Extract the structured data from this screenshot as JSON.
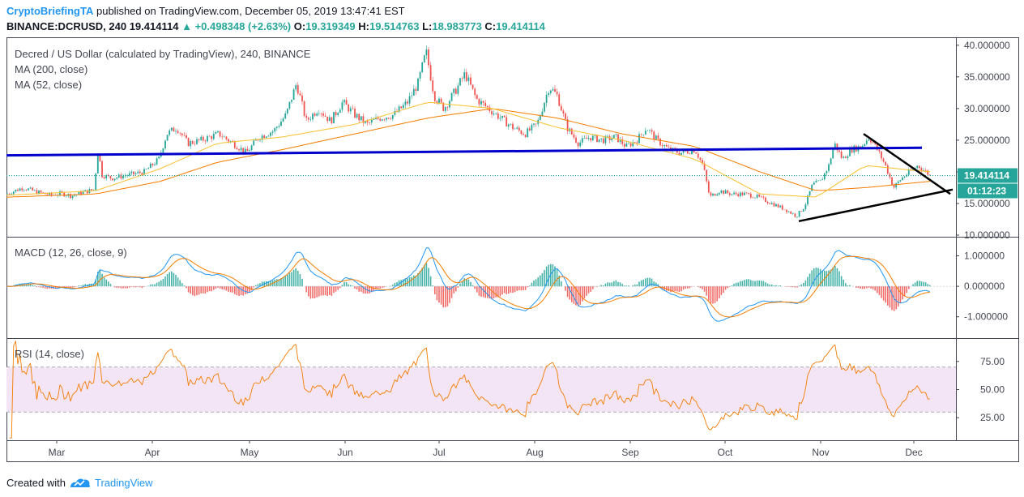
{
  "header": {
    "author": "CryptoBriefingTA",
    "published_text": " published on TradingView.com, December 05, 2019 13:47:41 EST"
  },
  "quote": {
    "symbol": "BINANCE:DCRUSD, 240",
    "last": "19.414114",
    "change": "+0.498348 (+2.63%)",
    "open_label": "O:",
    "open": "19.319349",
    "high_label": "H:",
    "high": "19.514763",
    "low_label": "L:",
    "low": "18.983773",
    "close_label": "C:",
    "close": "19.414114"
  },
  "legend": {
    "title": "Decred / US Dollar (calculated by TradingView), 240, BINANCE",
    "ma200": "MA (200, close)",
    "ma52": "MA (52, close)",
    "macd": "MACD (12, 26, close, 9)",
    "rsi": "RSI (14, close)"
  },
  "price_tag": {
    "value": "19.414114",
    "countdown": "01:12:23"
  },
  "colors": {
    "up": "#26a69a",
    "down": "#ef5350",
    "trendline": "#0000cc",
    "triangle": "#000000",
    "ma200": "#f57c00",
    "ma52": "#fbc02d",
    "macd_line": "#2196f3",
    "signal_line": "#f57c00",
    "rsi_line": "#f57c00",
    "rsi_band": "#f3e5f5"
  },
  "footer": {
    "created_with": "Created with",
    "brand": "TradingView"
  },
  "chart_data": [
    {
      "type": "candlestick",
      "title": "Decred / US Dollar (calculated by TradingView), 240, BINANCE",
      "x_ticks": [
        "Mar",
        "Apr",
        "May",
        "Jun",
        "Jul",
        "Aug",
        "Sep",
        "Oct",
        "Nov",
        "Dec"
      ],
      "y_ticks": [
        "40.000000",
        "35.000000",
        "30.000000",
        "25.000000",
        "20.000000",
        "15.000000",
        "10.000000"
      ],
      "y_tick_values": [
        40,
        35,
        30,
        25,
        20,
        15,
        10
      ],
      "ylim": [
        10,
        41
      ],
      "price_path": [
        [
          0,
          16.5
        ],
        [
          20,
          17.5
        ],
        [
          38,
          16.8
        ],
        [
          55,
          16.3
        ],
        [
          68,
          16.6
        ],
        [
          80,
          16.2
        ],
        [
          95,
          16.8
        ],
        [
          108,
          17.2
        ],
        [
          113,
          23.5
        ],
        [
          118,
          19.5
        ],
        [
          130,
          19.0
        ],
        [
          150,
          19.5
        ],
        [
          170,
          20.0
        ],
        [
          188,
          22.0
        ],
        [
          198,
          26.0
        ],
        [
          210,
          27.0
        ],
        [
          224,
          24.5
        ],
        [
          240,
          25.0
        ],
        [
          262,
          26.0
        ],
        [
          280,
          24.5
        ],
        [
          296,
          23.0
        ],
        [
          312,
          25.5
        ],
        [
          330,
          26.5
        ],
        [
          345,
          29.0
        ],
        [
          358,
          34.0
        ],
        [
          370,
          28.0
        ],
        [
          385,
          30.0
        ],
        [
          400,
          28.0
        ],
        [
          415,
          31.0
        ],
        [
          430,
          29.0
        ],
        [
          445,
          27.5
        ],
        [
          460,
          28.5
        ],
        [
          478,
          29.0
        ],
        [
          495,
          31.0
        ],
        [
          508,
          34.0
        ],
        [
          518,
          39.0
        ],
        [
          528,
          32.0
        ],
        [
          540,
          30.0
        ],
        [
          555,
          33.0
        ],
        [
          566,
          35.5
        ],
        [
          580,
          31.5
        ],
        [
          595,
          30.0
        ],
        [
          610,
          28.5
        ],
        [
          625,
          27.0
        ],
        [
          640,
          26.0
        ],
        [
          655,
          27.5
        ],
        [
          670,
          33.5
        ],
        [
          680,
          32.0
        ],
        [
          692,
          27.0
        ],
        [
          706,
          24.5
        ],
        [
          720,
          25.5
        ],
        [
          736,
          25.0
        ],
        [
          752,
          25.5
        ],
        [
          765,
          24.0
        ],
        [
          778,
          25.0
        ],
        [
          790,
          27.0
        ],
        [
          803,
          25.0
        ],
        [
          818,
          23.5
        ],
        [
          832,
          23.0
        ],
        [
          850,
          23.5
        ],
        [
          860,
          21.0
        ],
        [
          868,
          16.0
        ],
        [
          880,
          17.0
        ],
        [
          895,
          16.5
        ],
        [
          912,
          16.5
        ],
        [
          928,
          16.0
        ],
        [
          945,
          15.0
        ],
        [
          962,
          14.0
        ],
        [
          975,
          13.0
        ],
        [
          985,
          14.5
        ],
        [
          995,
          18.0
        ],
        [
          1005,
          18.5
        ],
        [
          1015,
          21.0
        ],
        [
          1022,
          24.5
        ],
        [
          1032,
          22.0
        ],
        [
          1042,
          23.5
        ],
        [
          1055,
          24.0
        ],
        [
          1065,
          25.5
        ],
        [
          1075,
          23.5
        ],
        [
          1085,
          21.0
        ],
        [
          1095,
          17.5
        ],
        [
          1105,
          19.0
        ],
        [
          1115,
          20.0
        ],
        [
          1125,
          21.0
        ],
        [
          1135,
          20.0
        ],
        [
          1140,
          19.41
        ]
      ],
      "ma200_path": [
        [
          0,
          16.0
        ],
        [
          110,
          16.5
        ],
        [
          190,
          18.5
        ],
        [
          260,
          21.5
        ],
        [
          340,
          23.5
        ],
        [
          430,
          26.0
        ],
        [
          520,
          28.5
        ],
        [
          600,
          30.0
        ],
        [
          680,
          28.5
        ],
        [
          760,
          26.0
        ],
        [
          850,
          24.0
        ],
        [
          930,
          20.0
        ],
        [
          1000,
          17.0
        ],
        [
          1060,
          17.5
        ],
        [
          1140,
          18.5
        ]
      ],
      "ma52_path": [
        [
          0,
          16.3
        ],
        [
          110,
          17.0
        ],
        [
          190,
          20.5
        ],
        [
          260,
          24.5
        ],
        [
          340,
          25.5
        ],
        [
          430,
          27.5
        ],
        [
          520,
          31.0
        ],
        [
          600,
          30.0
        ],
        [
          680,
          27.0
        ],
        [
          760,
          25.0
        ],
        [
          850,
          22.0
        ],
        [
          930,
          16.5
        ],
        [
          1000,
          16.0
        ],
        [
          1060,
          21.0
        ],
        [
          1140,
          20.0
        ]
      ],
      "trendline": [
        [
          0,
          22.6
        ],
        [
          1130,
          23.8
        ]
      ],
      "triangle_upper": [
        [
          1058,
          26.0
        ],
        [
          1165,
          16.5
        ]
      ],
      "triangle_lower": [
        [
          978,
          12.2
        ],
        [
          1168,
          17.2
        ]
      ],
      "last_price_line": 19.414114
    },
    {
      "type": "line",
      "title": "MACD (12, 26, close, 9)",
      "y_ticks": [
        "1.000000",
        "0.000000",
        "-1.000000"
      ],
      "y_tick_values": [
        1,
        0,
        -1
      ],
      "ylim": [
        -1.7,
        1.6
      ]
    },
    {
      "type": "line",
      "title": "RSI (14, close)",
      "y_ticks": [
        "75.00",
        "50.00",
        "25.00"
      ],
      "y_tick_values": [
        75,
        50,
        25
      ],
      "ylim": [
        5,
        95
      ],
      "band": [
        30,
        70
      ]
    }
  ]
}
